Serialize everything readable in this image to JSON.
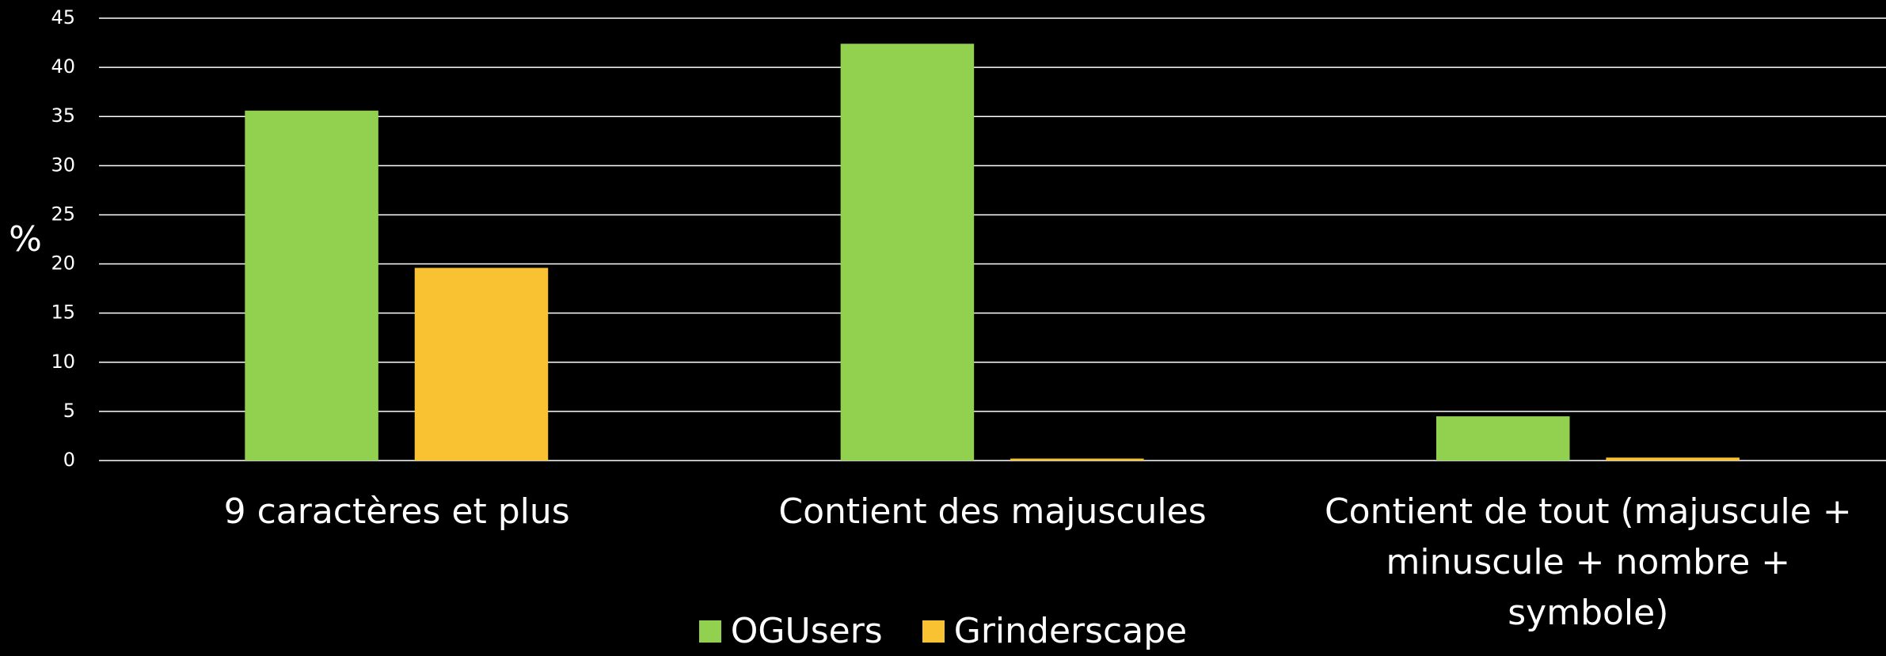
{
  "chart_data": {
    "type": "bar",
    "y_label": "%",
    "categories": [
      "9 caractères et plus",
      "Contient des majuscules",
      "Contient de tout (majuscule + minuscule + nombre + symbole)"
    ],
    "series": [
      {
        "name": "OGUsers",
        "color": "#92d050",
        "values": [
          35.6,
          42.4,
          4.5
        ]
      },
      {
        "name": "Grinderscape",
        "color": "#f8c232",
        "values": [
          19.6,
          0.2,
          0.3
        ]
      }
    ],
    "ylim": [
      0,
      45
    ],
    "yticks": [
      0,
      5,
      10,
      15,
      20,
      25,
      30,
      35,
      40,
      45
    ],
    "grid": true
  }
}
